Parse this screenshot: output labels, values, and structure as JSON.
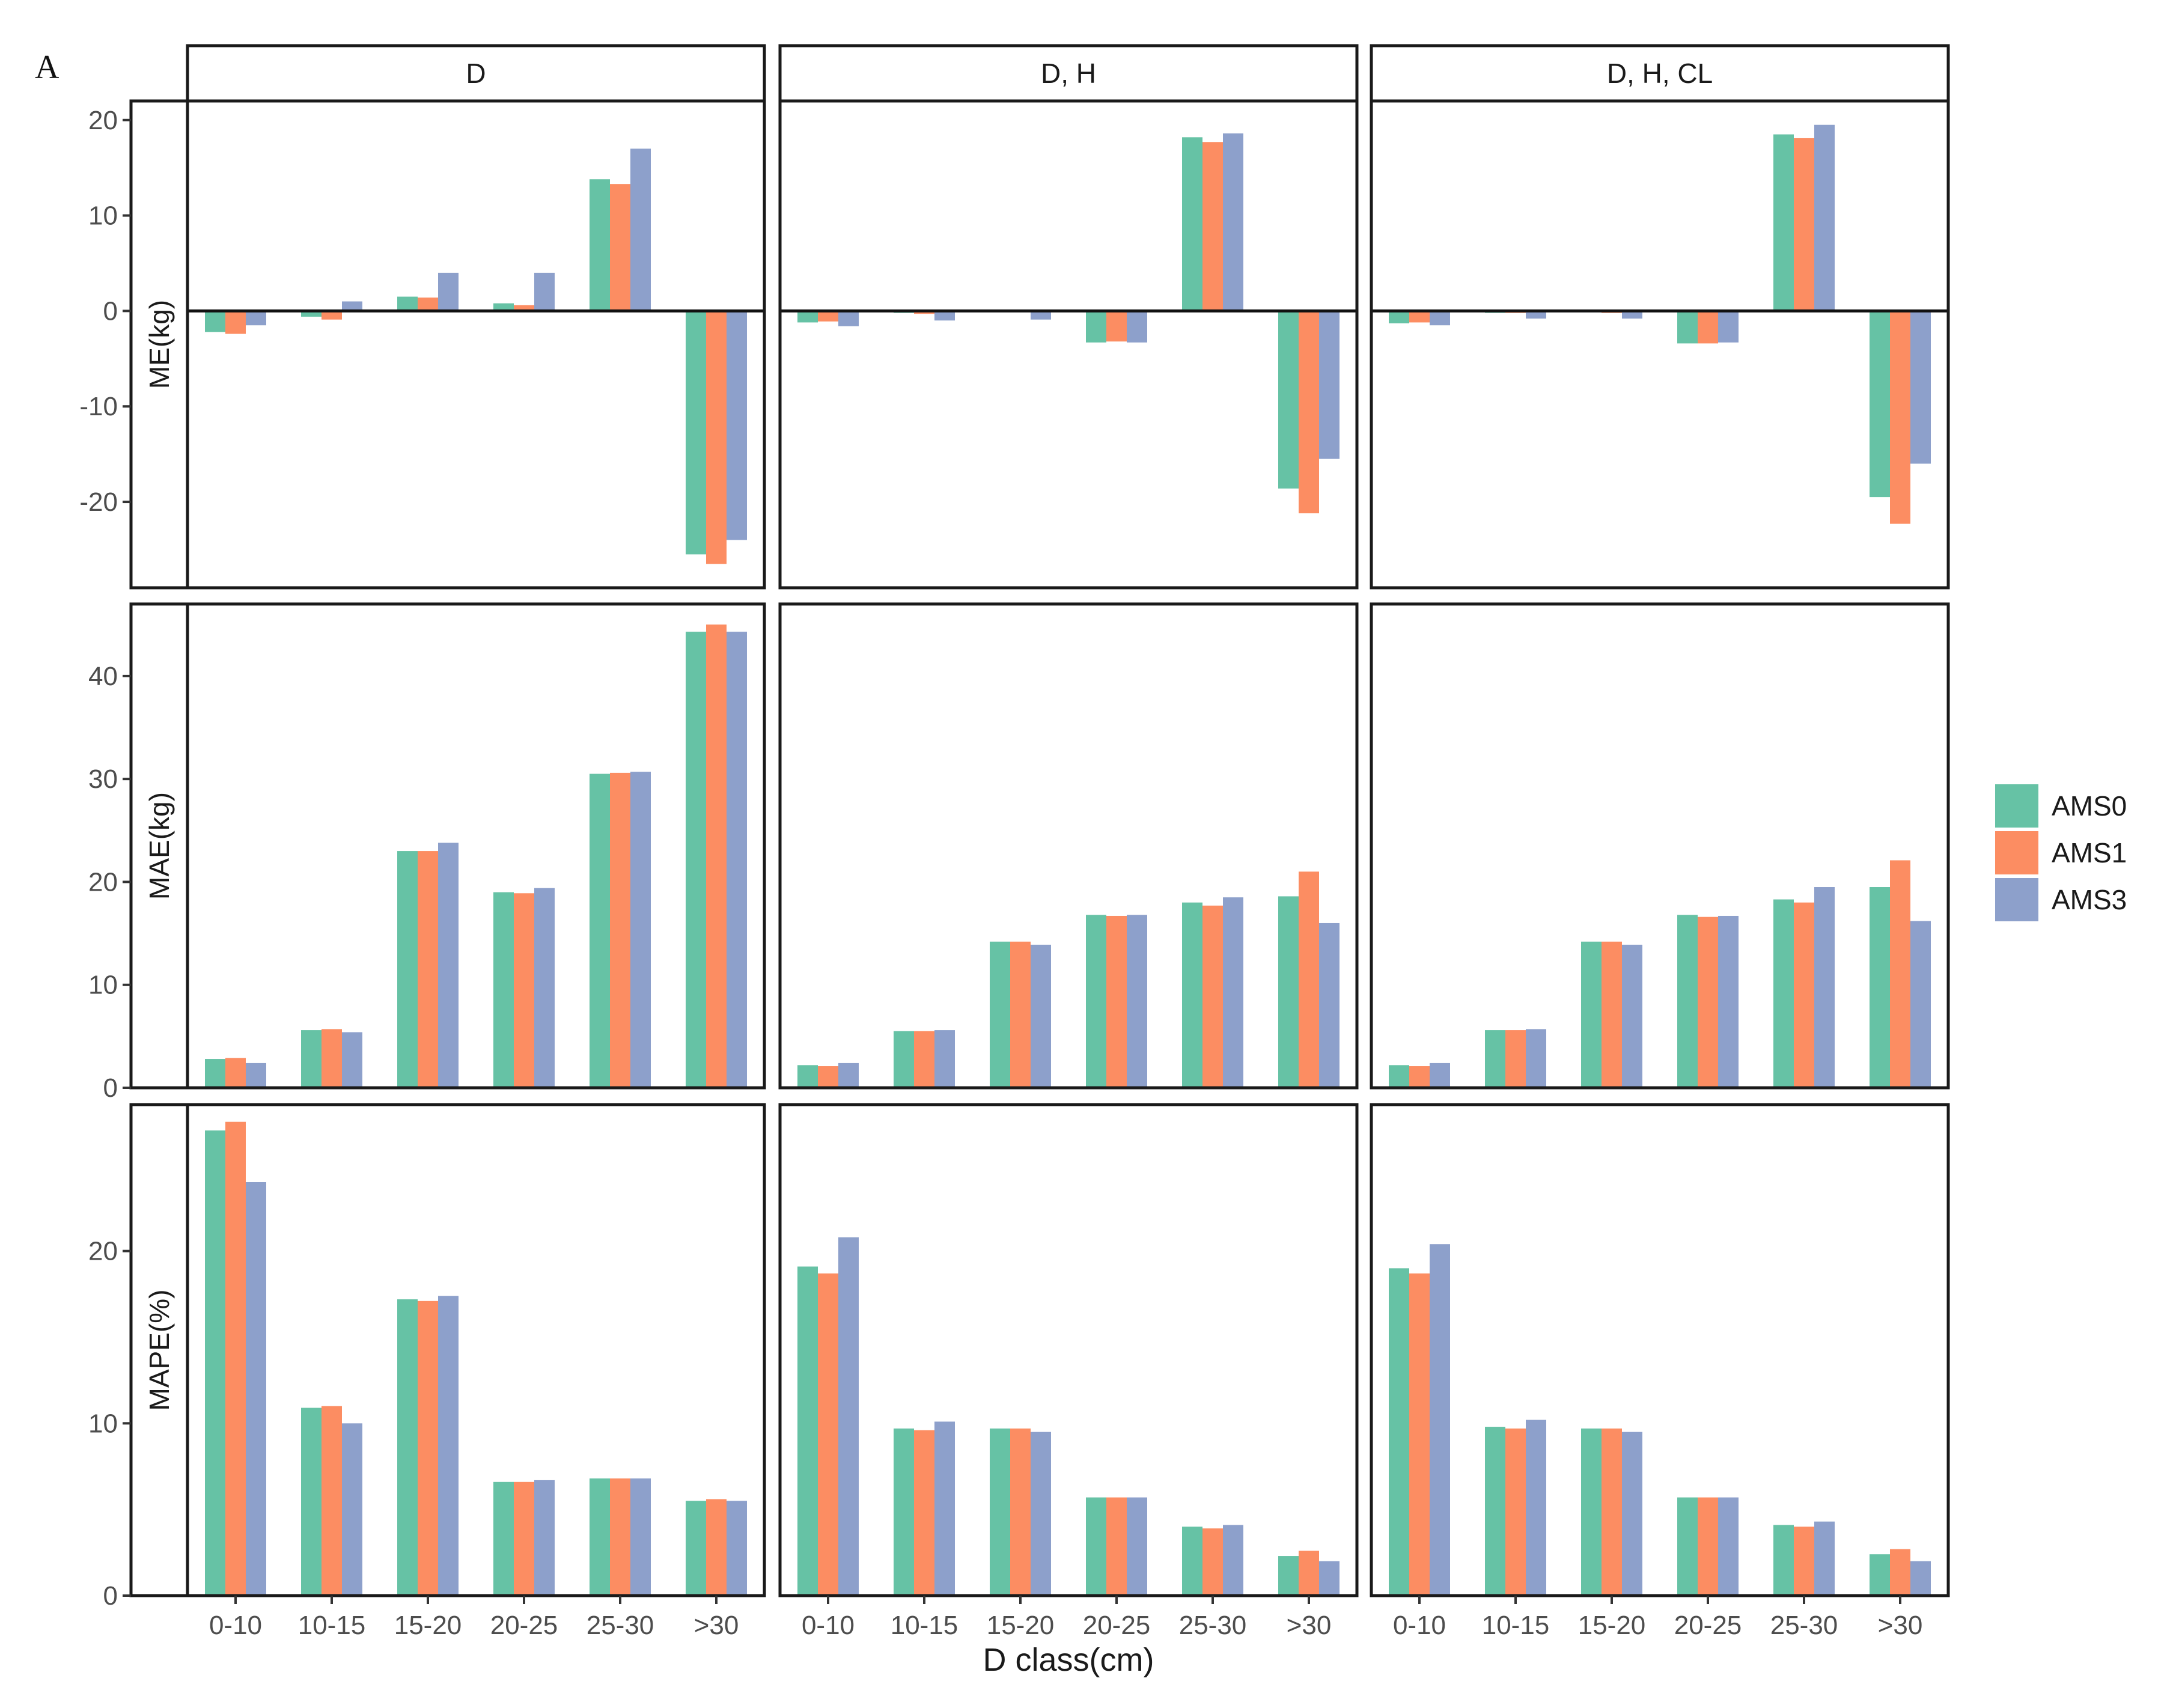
{
  "figure": {
    "panel_label": "A"
  },
  "chart_data": {
    "type": "bar",
    "facet_columns": [
      "D",
      "D, H",
      "D, H, CL"
    ],
    "facet_rows": [
      {
        "ylabel": "ME(kg)",
        "ylim": [
          -29,
          22
        ],
        "yticks": [
          20,
          10,
          0,
          -10,
          -20
        ],
        "ytick_labels": [
          "20",
          "10",
          "0",
          "-10",
          "-20"
        ]
      },
      {
        "ylabel": "MAE(kg)",
        "ylim": [
          0,
          47
        ],
        "yticks": [
          0,
          10,
          20,
          30,
          40
        ],
        "ytick_labels": [
          "0",
          "10",
          "20",
          "30",
          "40"
        ]
      },
      {
        "ylabel": "MAPE(%)",
        "ylim": [
          0,
          28.5
        ],
        "yticks": [
          0,
          10,
          20
        ],
        "ytick_labels": [
          "0",
          "10",
          "20"
        ]
      }
    ],
    "categories": [
      "0-10",
      "10-15",
      "15-20",
      "20-25",
      "25-30",
      ">30"
    ],
    "xlabel": "D class(cm)",
    "legend": {
      "position": "right"
    },
    "series": [
      {
        "name": "AMS0",
        "color": "#66C2A5"
      },
      {
        "name": "AMS1",
        "color": "#FC8D62"
      },
      {
        "name": "AMS3",
        "color": "#8DA0CB"
      }
    ],
    "values": [
      [
        [
          [
            -2.2,
            -0.6,
            1.5,
            0.8,
            13.8,
            -25.5
          ],
          [
            -2.4,
            -0.9,
            1.4,
            0.6,
            13.3,
            -26.5
          ],
          [
            -1.5,
            1.0,
            4.0,
            4.0,
            17.0,
            -24.0
          ]
        ],
        [
          [
            -1.2,
            -0.2,
            0.0,
            -3.3,
            18.2,
            -18.6
          ],
          [
            -1.1,
            -0.3,
            0.0,
            -3.2,
            17.7,
            -21.2
          ],
          [
            -1.6,
            -1.0,
            -0.9,
            -3.3,
            18.6,
            -15.5
          ]
        ],
        [
          [
            -1.3,
            -0.2,
            -0.1,
            -3.4,
            18.5,
            -19.5
          ],
          [
            -1.2,
            -0.2,
            -0.2,
            -3.4,
            18.1,
            -22.3
          ],
          [
            -1.5,
            -0.8,
            -0.8,
            -3.3,
            19.5,
            -16.0
          ]
        ]
      ],
      [
        [
          [
            2.8,
            5.6,
            23.0,
            19.0,
            30.5,
            44.3
          ],
          [
            2.9,
            5.7,
            23.0,
            18.9,
            30.6,
            45.0
          ],
          [
            2.4,
            5.4,
            23.8,
            19.4,
            30.7,
            44.3
          ]
        ],
        [
          [
            2.2,
            5.5,
            14.2,
            16.8,
            18.0,
            18.6
          ],
          [
            2.1,
            5.5,
            14.2,
            16.7,
            17.7,
            21.0
          ],
          [
            2.4,
            5.6,
            13.9,
            16.8,
            18.5,
            16.0
          ]
        ],
        [
          [
            2.2,
            5.6,
            14.2,
            16.8,
            18.3,
            19.5
          ],
          [
            2.1,
            5.6,
            14.2,
            16.6,
            18.0,
            22.1
          ],
          [
            2.4,
            5.7,
            13.9,
            16.7,
            19.5,
            16.2
          ]
        ]
      ],
      [
        [
          [
            27.0,
            10.9,
            17.2,
            6.6,
            6.8,
            5.5
          ],
          [
            27.5,
            11.0,
            17.1,
            6.6,
            6.8,
            5.6
          ],
          [
            24.0,
            10.0,
            17.4,
            6.7,
            6.8,
            5.5
          ]
        ],
        [
          [
            19.1,
            9.7,
            9.7,
            5.7,
            4.0,
            2.3
          ],
          [
            18.7,
            9.6,
            9.7,
            5.7,
            3.9,
            2.6
          ],
          [
            20.8,
            10.1,
            9.5,
            5.7,
            4.1,
            2.0
          ]
        ],
        [
          [
            19.0,
            9.8,
            9.7,
            5.7,
            4.1,
            2.4
          ],
          [
            18.7,
            9.7,
            9.7,
            5.7,
            4.0,
            2.7
          ],
          [
            20.4,
            10.2,
            9.5,
            5.7,
            4.3,
            2.0
          ]
        ]
      ]
    ]
  }
}
